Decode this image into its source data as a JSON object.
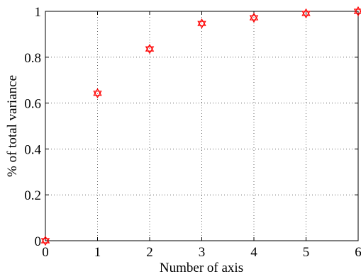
{
  "chart_data": {
    "type": "scatter",
    "title": "",
    "xlabel": "Number of axis",
    "ylabel": "% of total variance",
    "xlim": [
      0,
      6
    ],
    "ylim": [
      0,
      1
    ],
    "grid": true,
    "x_ticks": [
      "0",
      "1",
      "2",
      "3",
      "4",
      "5",
      "6"
    ],
    "y_ticks": [
      "0",
      "0.2",
      "0.4",
      "0.6",
      "0.8",
      "1"
    ],
    "series": [
      {
        "marker": "hexagram",
        "color": "#ff0000",
        "x": [
          0,
          1,
          2,
          3,
          4,
          5,
          6
        ],
        "y": [
          0,
          0.643,
          0.836,
          0.947,
          0.972,
          0.991,
          1.0
        ]
      }
    ]
  }
}
